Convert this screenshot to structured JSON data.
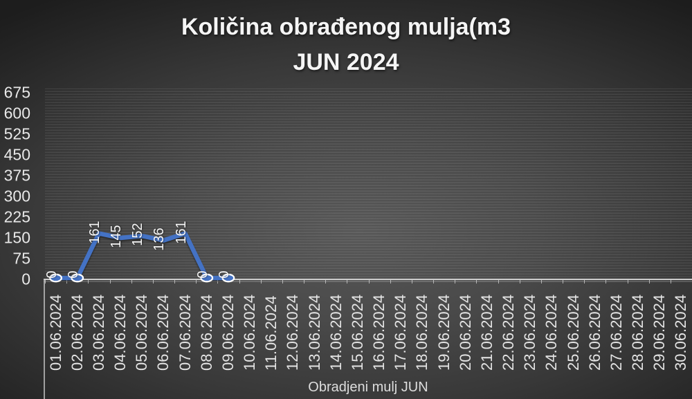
{
  "title": {
    "line1": "Količina obrađenog mulja(m3",
    "line2": "JUN 2024"
  },
  "chart_data": {
    "type": "line",
    "title": "Količina obrađenog mulja(m3 JUN 2024",
    "x_axis_title": "Obradjeni mulj JUN",
    "categories": [
      "01.06.2024",
      "02.06.2024",
      "03.06.2024",
      "04.06.2024",
      "05.06.2024",
      "06.06.2024",
      "07.06.2024",
      "08.06.2024",
      "09.06.2024",
      "10.06.2024",
      "11.06.2024",
      "12.06.2024",
      "13.06.2024",
      "14.06.2024",
      "15.06.2024",
      "16.06.2024",
      "17.06.2024",
      "18.06.2024",
      "19.06.2024",
      "20.06.2024",
      "21.06.2024",
      "22.06.2024",
      "23.06.2024",
      "24.06.2024",
      "25.06.2024",
      "26.06.2024",
      "27.06.2024",
      "28.06.2024",
      "29.06.2024",
      "30.06.2024"
    ],
    "series": [
      {
        "name": "Obradjeni mulj JUN",
        "values": [
          0,
          0,
          161,
          145,
          152,
          136,
          161,
          0,
          0,
          null,
          null,
          null,
          null,
          null,
          null,
          null,
          null,
          null,
          null,
          null,
          null,
          null,
          null,
          null,
          null,
          null,
          null,
          null,
          null,
          null
        ]
      }
    ],
    "data_labels": true,
    "yticks": [
      0,
      75,
      150,
      225,
      300,
      375,
      450,
      525,
      600,
      675
    ],
    "ylim": [
      0,
      675
    ],
    "grid": "horizontal-minor",
    "legend_position": "none"
  },
  "colors": {
    "line": "#4472C4",
    "marker_fill": "#4472C4",
    "marker_outline": "#FFFFFF",
    "axis_line": "#CDCDCD",
    "tick_text": "#E8E8E8",
    "title_text": "#F5F5F5",
    "background_top": "#252525",
    "background_center": "#585858"
  }
}
